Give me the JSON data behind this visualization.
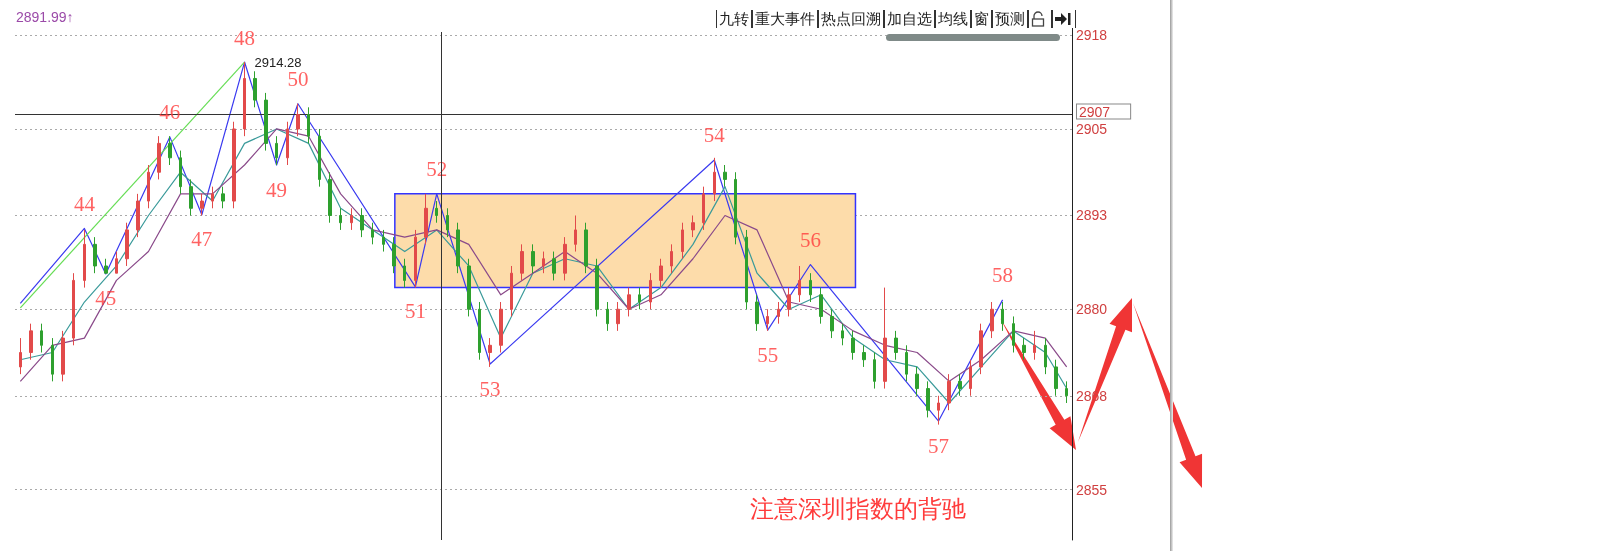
{
  "chart_data": {
    "type": "candlestick",
    "ylim": [
      2848,
      2919
    ],
    "yticks": [
      2855,
      2868,
      2880,
      2893,
      2905,
      2918
    ],
    "grid": "y",
    "tick_labels": "y",
    "marker": "none",
    "line_style": "solid",
    "categories": [
      null,
      null,
      null,
      null,
      null,
      null,
      null,
      null,
      null,
      null,
      null,
      null,
      null,
      null,
      null,
      null,
      null,
      null,
      null,
      null,
      null,
      null,
      null,
      null,
      null,
      null,
      null,
      null,
      null,
      null,
      null,
      null,
      null,
      null,
      null,
      null,
      null,
      null,
      null,
      null,
      null,
      null,
      null,
      null,
      null,
      null,
      null,
      null,
      null,
      null,
      null,
      null,
      null,
      null,
      null,
      null,
      null,
      null,
      null,
      null,
      null,
      null,
      null,
      null,
      null,
      null,
      null,
      null,
      null,
      null,
      null,
      null,
      null,
      null,
      null,
      null,
      null,
      null,
      null,
      null,
      null,
      null,
      null,
      null,
      null,
      null,
      null,
      null,
      null,
      null,
      null,
      null,
      null,
      null,
      null,
      null,
      null,
      null,
      null
    ],
    "ref_lines": [
      {
        "axis": "y",
        "value": 2907,
        "label": "2907",
        "color": "#333333"
      }
    ],
    "bands": [
      {
        "axis": "y",
        "from": 2883,
        "to": 2896,
        "color": "#fddcaa"
      }
    ],
    "annotations": [
      "2891.99↑",
      "九转",
      "重大事件",
      "热点回溯",
      "加自选",
      "均线",
      "窗",
      "预测",
      "注意深圳指数的背驰",
      {
        "text": "44",
        "y": 2891.2
      },
      {
        "text": "45",
        "y": 2884.9
      },
      {
        "text": "46",
        "y": 2903.9
      },
      {
        "text": "47",
        "y": 2893.1
      },
      {
        "text": "48",
        "y": 2914.28
      },
      {
        "text": "49",
        "y": 2900
      },
      {
        "text": "50",
        "y": 2908.5
      },
      {
        "text": "51",
        "y": 2883.1
      },
      {
        "text": "52",
        "y": 2896
      },
      {
        "text": "53",
        "y": 2872.4
      },
      {
        "text": "54",
        "y": 2900.7
      },
      {
        "text": "55",
        "y": 2877.1
      },
      {
        "text": "56",
        "y": 2886.2
      },
      {
        "text": "57",
        "y": 2864.5
      },
      {
        "text": "58",
        "y": 2881.3
      }
    ],
    "colors": [
      "#e24a4a",
      "#e24a4a",
      "#2ea02e",
      "#2ea02e",
      "#e24a4a",
      "#e24a4a",
      "#e24a4a",
      "#2ea02e",
      "#2ea02e",
      "#e24a4a",
      "#e24a4a",
      "#e24a4a",
      "#e24a4a",
      "#e24a4a",
      "#2ea02e",
      "#2ea02e",
      "#2ea02e",
      "#e24a4a",
      "#e24a4a",
      "#2ea02e",
      "#e24a4a",
      "#e24a4a",
      "#2ea02e",
      "#2ea02e",
      "#2ea02e",
      "#e24a4a",
      "#e24a4a",
      "#2ea02e",
      "#2ea02e",
      "#2ea02e",
      "#2ea02e",
      "#e24a4a",
      "#2ea02e",
      "#2ea02e",
      "#2ea02e",
      "#2ea02e",
      "#2ea02e",
      "#e24a4a",
      "#e24a4a",
      "#2ea02e",
      "#2ea02e",
      "#2ea02e",
      "#2ea02e",
      "#2ea02e",
      "#e24a4a",
      "#e24a4a",
      "#e24a4a",
      "#e24a4a",
      "#2ea02e",
      "#e24a4a",
      "#2ea02e",
      "#e24a4a",
      "#e24a4a",
      "#2ea02e",
      "#2ea02e",
      "#2ea02e",
      "#e24a4a",
      "#e24a4a",
      "#2ea02e",
      "#e24a4a",
      "#e24a4a",
      "#e24a4a",
      "#e24a4a",
      "#e24a4a",
      "#e24a4a",
      "#e24a4a",
      "#2ea02e",
      "#2ea02e",
      "#2ea02e",
      "#2ea02e",
      "#e24a4a",
      "#e24a4a",
      "#e24a4a",
      "#e24a4a",
      "#2ea02e",
      "#2ea02e",
      "#2ea02e",
      "#2ea02e",
      "#2ea02e",
      "#2ea02e",
      "#2ea02e",
      "#e24a4a",
      "#2ea02e",
      "#2ea02e",
      "#2ea02e",
      "#2ea02e",
      "#e24a4a",
      "#e24a4a",
      "#2ea02e",
      "#e24a4a",
      "#e24a4a",
      "#e24a4a",
      "#2ea02e",
      "#2ea02e",
      "#2ea02e",
      "#e24a4a",
      "#2ea02e",
      "#2ea02e",
      "#2ea02e"
    ],
    "ohlc": [
      [
        2872,
        2876,
        2871,
        2874
      ],
      [
        2874,
        2878,
        2873,
        2877
      ],
      [
        2877,
        2878,
        2874,
        2875
      ],
      [
        2875,
        2876,
        2870,
        2871
      ],
      [
        2871,
        2877,
        2870,
        2876
      ],
      [
        2876,
        2885,
        2875,
        2884
      ],
      [
        2884,
        2891,
        2883,
        2889
      ],
      [
        2889,
        2890,
        2885,
        2886
      ],
      [
        2886,
        2887,
        2885,
        2885
      ],
      [
        2885,
        2888,
        2885,
        2887
      ],
      [
        2887,
        2892,
        2886,
        2891
      ],
      [
        2891,
        2896,
        2890,
        2895
      ],
      [
        2895,
        2900,
        2894,
        2899
      ],
      [
        2899,
        2904,
        2898,
        2903
      ],
      [
        2903,
        2904,
        2900,
        2901
      ],
      [
        2901,
        2902,
        2896,
        2897
      ],
      [
        2897,
        2898,
        2893,
        2894
      ],
      [
        2894,
        2896,
        2893,
        2895
      ],
      [
        2895,
        2897,
        2894,
        2896
      ],
      [
        2896,
        2897,
        2894,
        2895
      ],
      [
        2895,
        2906,
        2894,
        2905
      ],
      [
        2905,
        2914.28,
        2904,
        2912
      ],
      [
        2912,
        2913,
        2908,
        2909
      ],
      [
        2909,
        2910,
        2902,
        2903
      ],
      [
        2903,
        2904,
        2900,
        2901
      ],
      [
        2901,
        2906,
        2900,
        2905
      ],
      [
        2905,
        2908.5,
        2904,
        2907
      ],
      [
        2907,
        2908,
        2903,
        2904
      ],
      [
        2904,
        2905,
        2897,
        2898
      ],
      [
        2898,
        2899,
        2892,
        2893
      ],
      [
        2893,
        2894,
        2891,
        2892
      ],
      [
        2892,
        2894,
        2891,
        2893
      ],
      [
        2893,
        2894,
        2890,
        2891
      ],
      [
        2891,
        2892,
        2889,
        2890
      ],
      [
        2890,
        2891,
        2888,
        2889
      ],
      [
        2889,
        2890,
        2885,
        2886
      ],
      [
        2886,
        2887,
        2883,
        2884
      ],
      [
        2884,
        2891,
        2883,
        2890
      ],
      [
        2890,
        2896,
        2889,
        2894
      ],
      [
        2894,
        2895,
        2892,
        2893
      ],
      [
        2893,
        2894,
        2890,
        2891
      ],
      [
        2891,
        2892,
        2885,
        2886
      ],
      [
        2886,
        2887,
        2879,
        2880
      ],
      [
        2880,
        2881,
        2873,
        2874
      ],
      [
        2874,
        2876,
        2872,
        2875
      ],
      [
        2875,
        2881,
        2874,
        2880
      ],
      [
        2880,
        2886,
        2879,
        2885
      ],
      [
        2885,
        2889,
        2884,
        2888
      ],
      [
        2888,
        2889,
        2885,
        2886
      ],
      [
        2886,
        2888,
        2885,
        2887
      ],
      [
        2887,
        2888,
        2884,
        2885
      ],
      [
        2885,
        2890,
        2884,
        2889
      ],
      [
        2889,
        2893,
        2888,
        2891
      ],
      [
        2891,
        2892,
        2885,
        2886
      ],
      [
        2886,
        2887,
        2879,
        2880
      ],
      [
        2880,
        2881,
        2877,
        2878
      ],
      [
        2878,
        2881,
        2877,
        2880
      ],
      [
        2880,
        2883,
        2879,
        2882
      ],
      [
        2882,
        2883,
        2880,
        2881
      ],
      [
        2881,
        2885,
        2880,
        2884
      ],
      [
        2884,
        2887,
        2883,
        2886
      ],
      [
        2886,
        2889,
        2885,
        2888
      ],
      [
        2888,
        2892,
        2887,
        2891
      ],
      [
        2891,
        2893,
        2890,
        2892
      ],
      [
        2892,
        2897,
        2891,
        2896
      ],
      [
        2896,
        2901,
        2895,
        2899
      ],
      [
        2899,
        2900,
        2897,
        2898
      ],
      [
        2898,
        2899,
        2889,
        2890
      ],
      [
        2890,
        2891,
        2880,
        2881
      ],
      [
        2881,
        2882,
        2877,
        2878
      ],
      [
        2878,
        2880,
        2877,
        2879
      ],
      [
        2879,
        2881,
        2878,
        2880
      ],
      [
        2880,
        2883,
        2879,
        2882
      ],
      [
        2882,
        2886,
        2881,
        2884
      ],
      [
        2884,
        2885,
        2881,
        2882
      ],
      [
        2882,
        2883,
        2878,
        2879
      ],
      [
        2879,
        2880,
        2876,
        2877
      ],
      [
        2877,
        2878,
        2875,
        2876
      ],
      [
        2876,
        2877,
        2873,
        2874
      ],
      [
        2874,
        2875,
        2872,
        2873
      ],
      [
        2873,
        2874,
        2869,
        2870
      ],
      [
        2870,
        2883,
        2869,
        2876
      ],
      [
        2876,
        2877,
        2873,
        2874
      ],
      [
        2874,
        2875,
        2870,
        2871
      ],
      [
        2871,
        2872,
        2868,
        2869
      ],
      [
        2869,
        2870,
        2865,
        2866
      ],
      [
        2866,
        2868,
        2864,
        2867
      ],
      [
        2867,
        2871,
        2866,
        2870
      ],
      [
        2870,
        2871,
        2868,
        2869
      ],
      [
        2869,
        2873,
        2868,
        2872
      ],
      [
        2872,
        2878,
        2871,
        2877
      ],
      [
        2877,
        2881,
        2876,
        2880
      ],
      [
        2880,
        2881,
        2877,
        2878
      ],
      [
        2878,
        2879,
        2874,
        2875
      ],
      [
        2875,
        2876,
        2873,
        2874
      ],
      [
        2874,
        2877,
        2873,
        2875
      ],
      [
        2875,
        2876,
        2871,
        2872
      ],
      [
        2872,
        2873,
        2868,
        2869
      ],
      [
        2869,
        2870,
        2867,
        2868
      ]
    ],
    "series": [
      {
        "type": "line",
        "color": "#3a3af0",
        "values": [
          2880.8,
          null,
          null,
          null,
          null,
          null,
          2891.2,
          null,
          2884.9,
          null,
          null,
          null,
          null,
          null,
          2903.9,
          null,
          null,
          2893.1,
          null,
          null,
          null,
          2914.28,
          null,
          null,
          2900,
          null,
          2908.5,
          null,
          null,
          null,
          null,
          null,
          null,
          null,
          null,
          null,
          null,
          2883.1,
          null,
          2896,
          null,
          null,
          null,
          null,
          2872.4,
          null,
          null,
          null,
          null,
          null,
          null,
          null,
          null,
          null,
          null,
          null,
          null,
          null,
          null,
          null,
          null,
          null,
          null,
          null,
          null,
          2900.7,
          null,
          null,
          null,
          null,
          2877.1,
          null,
          null,
          null,
          2886.2,
          null,
          null,
          null,
          null,
          null,
          null,
          null,
          null,
          null,
          null,
          null,
          2864.5,
          null,
          null,
          null,
          null,
          null,
          2881.3,
          null,
          null,
          null,
          null,
          null,
          null
        ],
        "line_style": "solid"
      },
      {
        "type": "line",
        "color": "#66dd55",
        "values": [
          2880.2,
          null,
          null,
          null,
          null,
          null,
          null,
          null,
          null,
          null,
          null,
          null,
          null,
          null,
          null,
          null,
          null,
          null,
          null,
          null,
          null,
          2914.28,
          null,
          null,
          null,
          null,
          null,
          null,
          null,
          null,
          null,
          null,
          null,
          null,
          null,
          null,
          null,
          null,
          null,
          null,
          null,
          null,
          null,
          null,
          null,
          null,
          null,
          null,
          null,
          null,
          null,
          null,
          null,
          null,
          null,
          null,
          null,
          null,
          null,
          null,
          null,
          null,
          null,
          null,
          null,
          null,
          null,
          null,
          null,
          null,
          null,
          null,
          null,
          null,
          null,
          null,
          null,
          null,
          null,
          null,
          null,
          null,
          null,
          null,
          null,
          null,
          null,
          null,
          null,
          null,
          null,
          null,
          null,
          null,
          null,
          null,
          null,
          null,
          null
        ],
        "value_labels": [
          null,
          null,
          null,
          null,
          null,
          null,
          null,
          null,
          null,
          null,
          null,
          null,
          null,
          null,
          null,
          null,
          null,
          null,
          null,
          null,
          null,
          "2914.28",
          null,
          null,
          null,
          null,
          null,
          null,
          null,
          null,
          null,
          null,
          null,
          null,
          null,
          null,
          null,
          null,
          null,
          null,
          null,
          null,
          null,
          null,
          null,
          null,
          null,
          null,
          null,
          null,
          null,
          null,
          null,
          null,
          null,
          null,
          null,
          null,
          null,
          null,
          null,
          null,
          null,
          null,
          null,
          null,
          null,
          null,
          null,
          null,
          null,
          null,
          null,
          null,
          null,
          null,
          null,
          null,
          null,
          null,
          null,
          null,
          null,
          null,
          null,
          null,
          null,
          null,
          null,
          null,
          null,
          null,
          null,
          null,
          null,
          null,
          null,
          null,
          null
        ]
      },
      {
        "type": "line",
        "color": "#3a9a9a",
        "values": [
          2873,
          null,
          null,
          2874,
          null,
          null,
          2881,
          null,
          null,
          2886,
          null,
          null,
          2893,
          null,
          null,
          2899,
          null,
          null,
          2895,
          null,
          null,
          2903,
          null,
          null,
          2905,
          null,
          null,
          2903,
          null,
          null,
          2894,
          null,
          null,
          2891,
          null,
          null,
          2888,
          null,
          null,
          2891,
          null,
          null,
          2886,
          null,
          null,
          2876,
          null,
          null,
          2885,
          null,
          null,
          2887,
          null,
          null,
          2886,
          null,
          null,
          2880,
          null,
          null,
          2883,
          null,
          null,
          2889,
          null,
          null,
          2897,
          null,
          null,
          2885,
          null,
          null,
          2880,
          null,
          null,
          2882,
          null,
          null,
          2876,
          null,
          null,
          2873,
          null,
          null,
          2872,
          null,
          null,
          2867,
          null,
          null,
          2872,
          null,
          null,
          2877,
          null,
          null,
          2874,
          null,
          2869
        ]
      },
      {
        "type": "line",
        "color": "#8a4a8a",
        "values": [
          2870,
          null,
          null,
          2875,
          null,
          null,
          2876,
          null,
          null,
          2884,
          null,
          null,
          2888,
          null,
          null,
          2896,
          null,
          null,
          2896,
          null,
          null,
          2900,
          null,
          null,
          2905,
          null,
          null,
          2904,
          null,
          null,
          2896,
          null,
          null,
          2891,
          null,
          null,
          2890,
          null,
          null,
          2891,
          null,
          null,
          2889,
          null,
          null,
          2882,
          null,
          null,
          2885,
          null,
          null,
          2888,
          null,
          null,
          2885,
          null,
          null,
          2880,
          null,
          null,
          2882,
          null,
          null,
          2887,
          null,
          null,
          2893,
          null,
          null,
          2891,
          null,
          null,
          2881,
          null,
          null,
          2880,
          null,
          null,
          2877,
          null,
          null,
          2875,
          null,
          null,
          2874,
          null,
          null,
          2870,
          null,
          null,
          2873,
          null,
          null,
          2877,
          null,
          null,
          2876,
          null,
          2872
        ]
      }
    ]
  }
}
